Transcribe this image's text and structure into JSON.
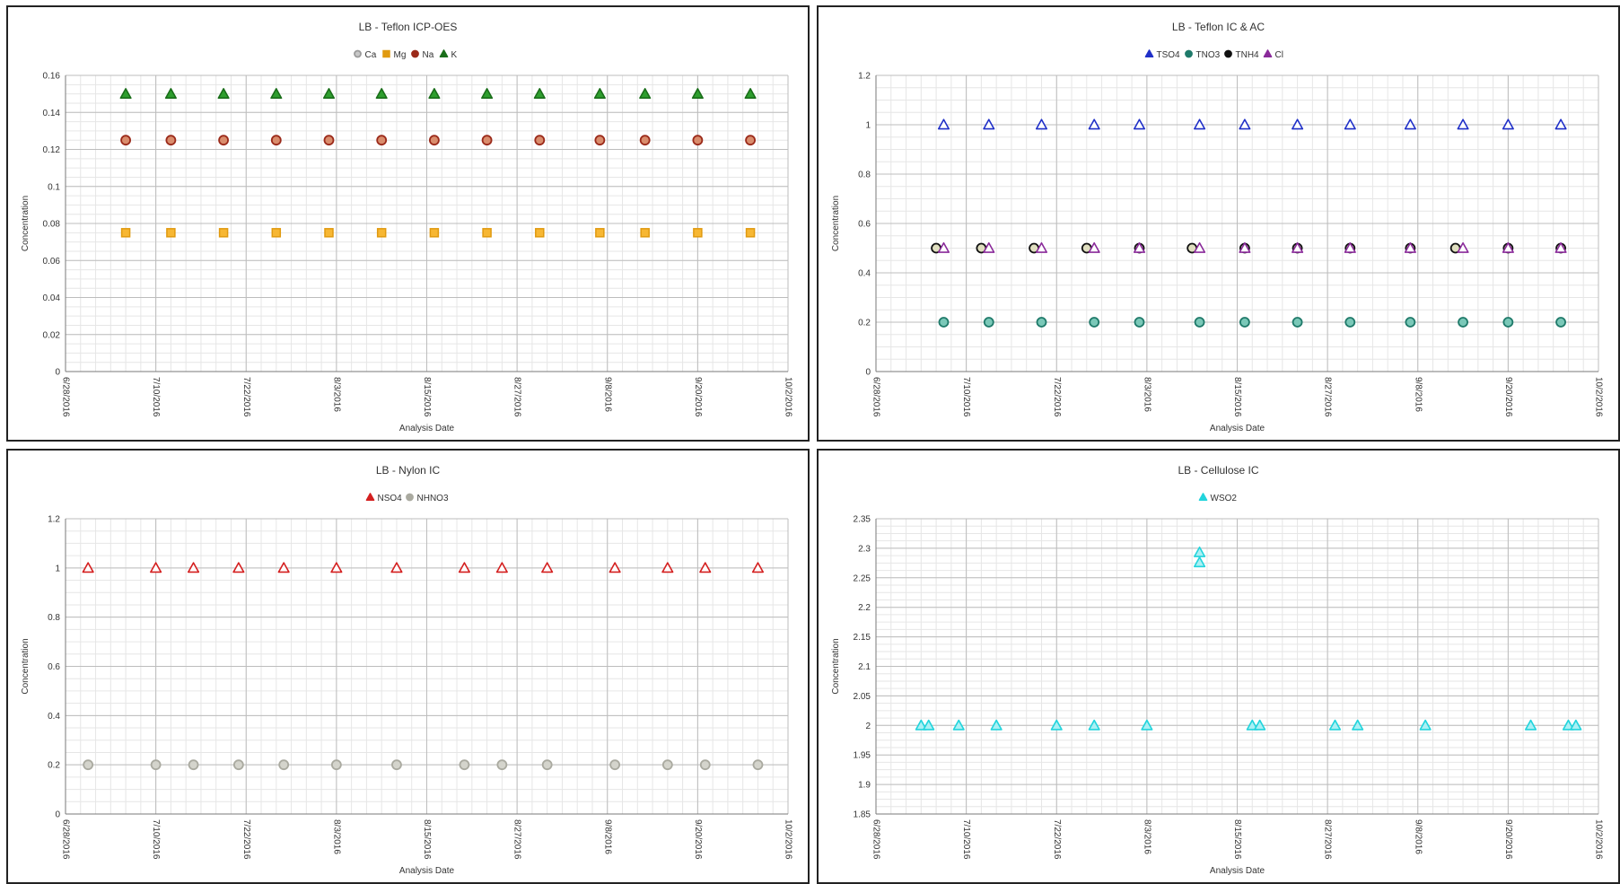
{
  "chart_data": [
    {
      "type": "scatter",
      "title": "LB - Teflon ICP-OES",
      "xlabel": "Analysis Date",
      "ylabel": "Concentration",
      "xlim": [
        "6/28/2016",
        "10/2/2016"
      ],
      "ylim": [
        0,
        0.16
      ],
      "ytick_step": 0.02,
      "x_tick_labels": [
        "6/28/2016",
        "7/10/2016",
        "7/22/2016",
        "8/3/2016",
        "8/15/2016",
        "8/27/2016",
        "9/8/2016",
        "9/20/2016",
        "10/2/2016"
      ],
      "y_tick_labels": [
        "0",
        "0.02",
        "0.04",
        "0.06",
        "0.08",
        "0.1",
        "0.12",
        "0.14",
        "0.16"
      ],
      "legend_position": "top-center",
      "grid": true,
      "series": [
        {
          "name": "Ca",
          "marker": "circle",
          "color": "#c8c8c8",
          "stroke": "#9a9a9a",
          "x": [],
          "y": []
        },
        {
          "name": "Mg",
          "marker": "square",
          "color": "#f7b733",
          "stroke": "#e09a10",
          "x": [
            "7/6/2016",
            "7/12/2016",
            "7/19/2016",
            "7/26/2016",
            "8/2/2016",
            "8/9/2016",
            "8/16/2016",
            "8/23/2016",
            "8/30/2016",
            "9/7/2016",
            "9/13/2016",
            "9/20/2016",
            "9/27/2016"
          ],
          "y": [
            0.075,
            0.075,
            0.075,
            0.075,
            0.075,
            0.075,
            0.075,
            0.075,
            0.075,
            0.075,
            0.075,
            0.075,
            0.075
          ]
        },
        {
          "name": "Na",
          "marker": "circle",
          "color": "#d98c6c",
          "stroke": "#9b2a1a",
          "x": [
            "7/6/2016",
            "7/12/2016",
            "7/19/2016",
            "7/26/2016",
            "8/2/2016",
            "8/9/2016",
            "8/16/2016",
            "8/23/2016",
            "8/30/2016",
            "9/7/2016",
            "9/13/2016",
            "9/20/2016",
            "9/27/2016"
          ],
          "y": [
            0.125,
            0.125,
            0.125,
            0.125,
            0.125,
            0.125,
            0.125,
            0.125,
            0.125,
            0.125,
            0.125,
            0.125,
            0.125
          ]
        },
        {
          "name": "K",
          "marker": "triangle",
          "color": "#2e9e2e",
          "stroke": "#1a6e1a",
          "x": [
            "7/6/2016",
            "7/12/2016",
            "7/19/2016",
            "7/26/2016",
            "8/2/2016",
            "8/9/2016",
            "8/16/2016",
            "8/23/2016",
            "8/30/2016",
            "9/7/2016",
            "9/13/2016",
            "9/20/2016",
            "9/27/2016"
          ],
          "y": [
            0.15,
            0.15,
            0.15,
            0.15,
            0.15,
            0.15,
            0.15,
            0.15,
            0.15,
            0.15,
            0.15,
            0.15,
            0.15
          ]
        }
      ]
    },
    {
      "type": "scatter",
      "title": "LB - Teflon IC & AC",
      "xlabel": "Analysis Date",
      "ylabel": "Concentration",
      "xlim": [
        "6/28/2016",
        "10/2/2016"
      ],
      "ylim": [
        0,
        1.2
      ],
      "ytick_step": 0.2,
      "x_tick_labels": [
        "6/28/2016",
        "7/10/2016",
        "7/22/2016",
        "8/3/2016",
        "8/15/2016",
        "8/27/2016",
        "9/8/2016",
        "9/20/2016",
        "10/2/2016"
      ],
      "y_tick_labels": [
        "0",
        "0.2",
        "0.4",
        "0.6",
        "0.8",
        "1",
        "1.2"
      ],
      "legend_position": "top-center",
      "grid": true,
      "series": [
        {
          "name": "TSO4",
          "marker": "triangle",
          "color": "#ffffff",
          "stroke": "#2030c8",
          "x": [
            "7/7/2016",
            "7/13/2016",
            "7/20/2016",
            "7/27/2016",
            "8/2/2016",
            "8/10/2016",
            "8/16/2016",
            "8/23/2016",
            "8/30/2016",
            "9/7/2016",
            "9/14/2016",
            "9/20/2016",
            "9/27/2016"
          ],
          "y": [
            1,
            1,
            1,
            1,
            1,
            1,
            1,
            1,
            1,
            1,
            1,
            1,
            1
          ]
        },
        {
          "name": "TNO3",
          "marker": "circle",
          "color": "#7ac8b8",
          "stroke": "#1f7a6a",
          "x": [
            "7/7/2016",
            "7/13/2016",
            "7/20/2016",
            "7/27/2016",
            "8/2/2016",
            "8/10/2016",
            "8/16/2016",
            "8/23/2016",
            "8/30/2016",
            "9/7/2016",
            "9/14/2016",
            "9/20/2016",
            "9/27/2016"
          ],
          "y": [
            0.2,
            0.2,
            0.2,
            0.2,
            0.2,
            0.2,
            0.2,
            0.2,
            0.2,
            0.2,
            0.2,
            0.2,
            0.2
          ]
        },
        {
          "name": "TNH4",
          "marker": "circle",
          "color": "#e0dfc0",
          "stroke": "#111111",
          "x": [
            "7/6/2016",
            "7/12/2016",
            "7/19/2016",
            "7/26/2016",
            "8/2/2016",
            "8/9/2016",
            "8/16/2016",
            "8/23/2016",
            "8/30/2016",
            "9/7/2016",
            "9/13/2016",
            "9/20/2016",
            "9/27/2016"
          ],
          "y": [
            0.5,
            0.5,
            0.5,
            0.5,
            0.5,
            0.5,
            0.5,
            0.5,
            0.5,
            0.5,
            0.5,
            0.5,
            0.5
          ]
        },
        {
          "name": "Cl",
          "marker": "triangle",
          "color": "#ffffff",
          "stroke": "#8a2a9a",
          "x": [
            "7/7/2016",
            "7/13/2016",
            "7/20/2016",
            "7/27/2016",
            "8/2/2016",
            "8/10/2016",
            "8/16/2016",
            "8/23/2016",
            "8/30/2016",
            "9/7/2016",
            "9/14/2016",
            "9/20/2016",
            "9/27/2016"
          ],
          "y": [
            0.5,
            0.5,
            0.5,
            0.5,
            0.5,
            0.5,
            0.5,
            0.5,
            0.5,
            0.5,
            0.5,
            0.5,
            0.5
          ]
        }
      ]
    },
    {
      "type": "scatter",
      "title": "LB - Nylon IC",
      "xlabel": "Analysis Date",
      "ylabel": "Concentration",
      "xlim": [
        "6/28/2016",
        "10/2/2016"
      ],
      "ylim": [
        0,
        1.2
      ],
      "ytick_step": 0.2,
      "x_tick_labels": [
        "6/28/2016",
        "7/10/2016",
        "7/22/2016",
        "8/3/2016",
        "8/15/2016",
        "8/27/2016",
        "9/8/2016",
        "9/20/2016",
        "10/2/2016"
      ],
      "y_tick_labels": [
        "0",
        "0.2",
        "0.4",
        "0.6",
        "0.8",
        "1",
        "1.2"
      ],
      "legend_position": "top-center",
      "grid": true,
      "series": [
        {
          "name": "NSO4",
          "marker": "triangle",
          "color": "#ffffff",
          "stroke": "#d42020",
          "x": [
            "7/1/2016",
            "7/10/2016",
            "7/15/2016",
            "7/21/2016",
            "7/27/2016",
            "8/3/2016",
            "8/11/2016",
            "8/20/2016",
            "8/25/2016",
            "8/31/2016",
            "9/9/2016",
            "9/16/2016",
            "9/21/2016",
            "9/28/2016"
          ],
          "y": [
            1,
            1,
            1,
            1,
            1,
            1,
            1,
            1,
            1,
            1,
            1,
            1,
            1,
            1
          ]
        },
        {
          "name": "NHNO3",
          "marker": "circle",
          "color": "#d4d4cc",
          "stroke": "#aaaaa0",
          "x": [
            "7/1/2016",
            "7/10/2016",
            "7/15/2016",
            "7/21/2016",
            "7/27/2016",
            "8/3/2016",
            "8/11/2016",
            "8/20/2016",
            "8/25/2016",
            "8/31/2016",
            "9/9/2016",
            "9/16/2016",
            "9/21/2016",
            "9/28/2016"
          ],
          "y": [
            0.2,
            0.2,
            0.2,
            0.2,
            0.2,
            0.2,
            0.2,
            0.2,
            0.2,
            0.2,
            0.2,
            0.2,
            0.2,
            0.2
          ]
        }
      ]
    },
    {
      "type": "scatter",
      "title": "LB - Cellulose IC",
      "xlabel": "Analysis Date",
      "ylabel": "Concentration",
      "xlim": [
        "6/28/2016",
        "10/2/2016"
      ],
      "ylim": [
        1.85,
        2.35
      ],
      "ytick_step": 0.05,
      "x_tick_labels": [
        "6/28/2016",
        "7/10/2016",
        "7/22/2016",
        "8/3/2016",
        "8/15/2016",
        "8/27/2016",
        "9/8/2016",
        "9/20/2016",
        "10/2/2016"
      ],
      "y_tick_labels": [
        "1.85",
        "1.9",
        "1.95",
        "2",
        "2.05",
        "2.1",
        "2.15",
        "2.2",
        "2.25",
        "2.3",
        "2.35"
      ],
      "legend_position": "top-center",
      "grid": true,
      "series": [
        {
          "name": "WSO2",
          "marker": "triangle",
          "color": "#aaf0f4",
          "stroke": "#22d4dc",
          "x": [
            "7/4/2016",
            "7/5/2016",
            "7/9/2016",
            "7/14/2016",
            "7/22/2016",
            "7/27/2016",
            "8/3/2016",
            "8/10/2016",
            "8/10/2016",
            "8/17/2016",
            "8/18/2016",
            "8/28/2016",
            "8/31/2016",
            "9/9/2016",
            "9/23/2016",
            "9/28/2016",
            "9/29/2016"
          ],
          "y": [
            2,
            2,
            2,
            2,
            2,
            2,
            2,
            2.293,
            2.276,
            2,
            2,
            2,
            2,
            2,
            2,
            2,
            2
          ]
        }
      ]
    }
  ]
}
